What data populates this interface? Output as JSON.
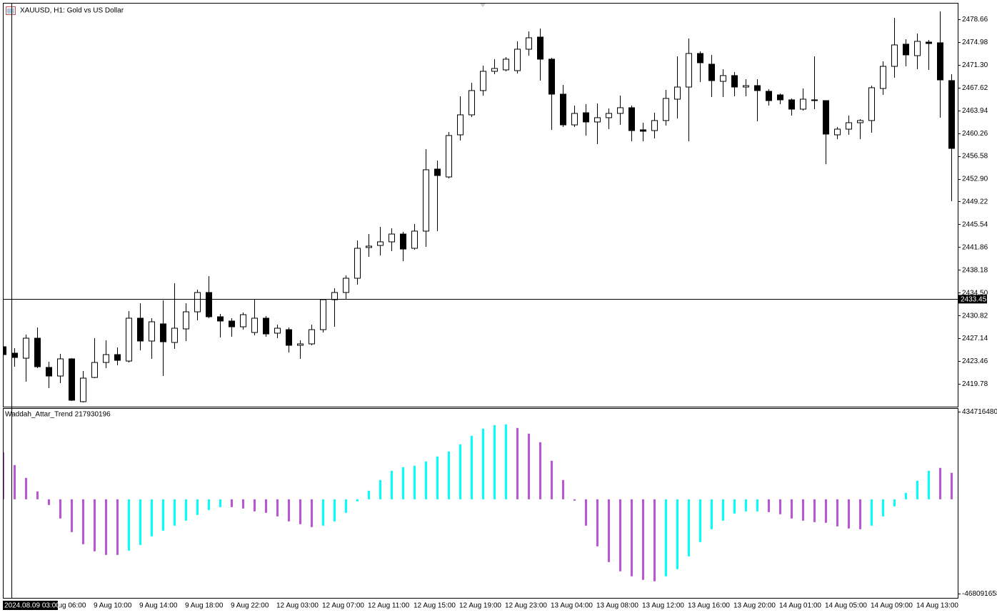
{
  "chart_data": [
    {
      "type": "candlestick",
      "title": "XAUUSD, H1:  Gold vs US Dollar",
      "categories": [
        null,
        null,
        null,
        null,
        "9 Aug 06:00",
        null,
        null,
        null,
        "9 Aug 10:00",
        null,
        null,
        null,
        "9 Aug 14:00",
        null,
        null,
        null,
        "9 Aug 18:00",
        null,
        null,
        null,
        "9 Aug 22:00",
        null,
        null,
        null,
        "12 Aug 03:00",
        null,
        null,
        null,
        "12 Aug 07:00",
        null,
        null,
        null,
        "12 Aug 11:00",
        null,
        null,
        null,
        "12 Aug 15:00",
        null,
        null,
        null,
        "12 Aug 19:00",
        null,
        null,
        null,
        "12 Aug 23:00",
        null,
        null,
        null,
        "13 Aug 04:00",
        null,
        null,
        null,
        "13 Aug 08:00",
        null,
        null,
        null,
        "13 Aug 12:00",
        null,
        null,
        null,
        "13 Aug 16:00",
        null,
        null,
        null,
        "13 Aug 20:00",
        null,
        null,
        null,
        "14 Aug 01:00",
        null,
        null,
        null,
        "14 Aug 05:00",
        null,
        null,
        null,
        "14 Aug 09:00",
        null,
        null,
        null,
        "14 Aug 13:00",
        null,
        null,
        null
      ],
      "open": [
        2425.77,
        2424.73,
        2423.92,
        2427.15,
        2422.43,
        2421.04,
        2423.81,
        2416.9,
        2420.81,
        2423.23,
        2424.5,
        2423.46,
        2430.38,
        2426.69,
        2429.46,
        2426.46,
        2428.65,
        2431.41,
        2434.53,
        2430.61,
        2429.92,
        2428.99,
        2428.07,
        2430.38,
        2427.96,
        2428.53,
        2426.0,
        2426.23,
        2428.53,
        2433.37,
        2434.53,
        2436.83,
        2441.79,
        2442.13,
        2442.71,
        2443.97,
        2441.67,
        2444.44,
        2454.46,
        2453.19,
        2459.99,
        2463.22,
        2467.14,
        2470.25,
        2470.48,
        2470.36,
        2473.82,
        2475.78,
        2472.21,
        2466.56,
        2461.6,
        2463.56,
        2462.07,
        2462.76,
        2463.45,
        2464.37,
        2460.8,
        2460.68,
        2462.3,
        2465.75,
        2467.71,
        2473.13,
        2471.4,
        2468.63,
        2469.56,
        2467.71,
        2467.94,
        2467.02,
        2466.44,
        2465.64,
        2464.14,
        2465.64,
        2465.52,
        2459.99,
        2460.91,
        2461.95,
        2462.3,
        2467.48,
        2471.05,
        2474.63,
        2472.78,
        2474.97,
        2474.86,
        2468.75
      ],
      "high": [
        2426.0,
        2425.54,
        2427.73,
        2428.88,
        2423.35,
        2424.62,
        2423.92,
        2421.85,
        2427.15,
        2426.81,
        2425.65,
        2431.53,
        2432.8,
        2430.38,
        2433.26,
        2436.02,
        2432.8,
        2434.99,
        2437.18,
        2431.07,
        2430.38,
        2431.3,
        2433.37,
        2430.72,
        2429.34,
        2428.88,
        2426.81,
        2429.34,
        2433.49,
        2435.22,
        2437.29,
        2442.94,
        2443.97,
        2445.13,
        2444.9,
        2444.32,
        2445.59,
        2457.69,
        2455.84,
        2460.45,
        2466.21,
        2468.4,
        2471.17,
        2472.21,
        2472.55,
        2475.09,
        2476.7,
        2477.16,
        2472.44,
        2468.06,
        2464.72,
        2464.95,
        2465.06,
        2464.25,
        2466.33,
        2464.72,
        2461.95,
        2463.56,
        2467.25,
        2472.67,
        2475.55,
        2473.47,
        2472.9,
        2470.59,
        2470.13,
        2468.98,
        2468.98,
        2467.37,
        2466.67,
        2465.87,
        2467.48,
        2472.67,
        2465.52,
        2461.26,
        2463.1,
        2462.53,
        2467.94,
        2471.86,
        2478.89,
        2475.43,
        2476.35,
        2475.32,
        2479.93,
        2469.79
      ],
      "low": [
        2424.39,
        2422.54,
        2420.12,
        2422.31,
        2419.09,
        2419.89,
        2417.01,
        2416.78,
        2420.7,
        2422.31,
        2422.77,
        2423.23,
        2425.19,
        2423.81,
        2421.04,
        2425.42,
        2426.69,
        2430.03,
        2430.38,
        2427.27,
        2427.38,
        2428.53,
        2427.61,
        2427.38,
        2427.15,
        2424.85,
        2423.81,
        2426.0,
        2428.07,
        2428.99,
        2433.49,
        2435.79,
        2440.29,
        2440.52,
        2441.21,
        2439.6,
        2441.44,
        2441.9,
        2444.44,
        2452.96,
        2459.07,
        2462.87,
        2466.33,
        2469.79,
        2470.25,
        2469.9,
        2472.78,
        2468.75,
        2460.8,
        2461.26,
        2461.26,
        2459.88,
        2458.49,
        2460.91,
        2461.6,
        2458.95,
        2458.95,
        2459.42,
        2461.49,
        2462.64,
        2458.95,
        2468.52,
        2466.1,
        2466.1,
        2466.21,
        2466.21,
        2462.18,
        2464.72,
        2464.95,
        2463.1,
        2463.91,
        2464.14,
        2455.27,
        2459.3,
        2459.99,
        2459.3,
        2460.34,
        2466.44,
        2469.21,
        2471.05,
        2470.59,
        2470.48,
        2462.76,
        2449.28
      ],
      "close": [
        2424.5,
        2424.04,
        2427.15,
        2422.54,
        2421.04,
        2423.81,
        2417.13,
        2420.7,
        2423.23,
        2424.5,
        2423.58,
        2430.38,
        2426.69,
        2429.8,
        2426.57,
        2428.76,
        2431.41,
        2434.53,
        2430.61,
        2429.92,
        2428.99,
        2430.95,
        2430.38,
        2427.84,
        2428.76,
        2426.0,
        2426.23,
        2428.53,
        2433.37,
        2434.53,
        2436.83,
        2441.67,
        2442.02,
        2442.71,
        2443.97,
        2441.55,
        2444.44,
        2454.35,
        2453.42,
        2459.88,
        2463.22,
        2467.14,
        2470.25,
        2470.71,
        2472.21,
        2473.82,
        2475.66,
        2472.21,
        2466.56,
        2461.6,
        2463.45,
        2462.07,
        2462.76,
        2463.45,
        2464.37,
        2460.68,
        2460.57,
        2462.3,
        2465.87,
        2467.71,
        2473.13,
        2471.63,
        2468.75,
        2469.56,
        2467.71,
        2467.94,
        2467.14,
        2465.52,
        2465.64,
        2464.14,
        2465.75,
        2465.52,
        2460.11,
        2460.91,
        2461.95,
        2462.3,
        2467.6,
        2471.05,
        2474.51,
        2472.9,
        2475.09,
        2474.74,
        2468.86,
        2457.8
      ],
      "up_color": "#ffffff",
      "down_color": "#000000",
      "ylim": [
        2416.09,
        2481.19
      ],
      "yticks": [
        2478.66,
        2474.98,
        {
          "value": 2471.3,
          "label": "2471.30"
        },
        2467.62,
        2463.94,
        2460.26,
        2456.58,
        {
          "value": 2452.9,
          "label": "2452.90"
        },
        2449.22,
        2445.54,
        2441.86,
        2438.18,
        {
          "value": 2434.5,
          "label": "2434.50"
        },
        2430.82,
        2427.14,
        2423.46,
        2419.78
      ],
      "crosshair": {
        "time": "2024.08.09 03:00",
        "price": 2433.45
      }
    },
    {
      "type": "bar",
      "title": "Waddah_Attar_Trend 217930196",
      "values": [
        233640000,
        169920000,
        106200000,
        38940000,
        -28320000,
        -95580000,
        -162840000,
        -223020000,
        -258420000,
        -276120000,
        -276120000,
        -254880000,
        -226560000,
        -184080000,
        -155760000,
        -130980000,
        -106200000,
        -77880000,
        -53100000,
        -38940000,
        -38940000,
        -46020000,
        -60180000,
        -67260000,
        -84960000,
        -109740000,
        -123900000,
        -138060000,
        -130980000,
        -109740000,
        -67260000,
        -10620000,
        42480000,
        95580000,
        141600000,
        159300000,
        166380000,
        187620000,
        212400000,
        237180000,
        272580000,
        315060000,
        350460000,
        368160000,
        371700000,
        354000000,
        325680000,
        283200000,
        191160000,
        95580000,
        -7080000,
        -130980000,
        -233640000,
        -311520000,
        -357540000,
        -382320000,
        -400020000,
        -407100000,
        -382320000,
        -346920000,
        -283200000,
        -212400000,
        -148680000,
        -106200000,
        -70800000,
        -60180000,
        -60180000,
        -63720000,
        -74340000,
        -95580000,
        -106200000,
        -113280000,
        -116820000,
        -134520000,
        -145140000,
        -148680000,
        -130980000,
        -84960000,
        -35400000,
        31860000,
        92040000,
        141600000,
        155760000,
        130980000
      ],
      "colors": [
        "#ba55d3",
        "#ba55d3",
        "#ba55d3",
        "#ba55d3",
        "#ba55d3",
        "#ba55d3",
        "#ba55d3",
        "#ba55d3",
        "#ba55d3",
        "#ba55d3",
        "#ba55d3",
        "#00ffff",
        "#00ffff",
        "#00ffff",
        "#00ffff",
        "#00ffff",
        "#00ffff",
        "#00ffff",
        "#00ffff",
        "#00ffff",
        "#ba55d3",
        "#ba55d3",
        "#ba55d3",
        "#ba55d3",
        "#ba55d3",
        "#ba55d3",
        "#ba55d3",
        "#ba55d3",
        "#00ffff",
        "#00ffff",
        "#00ffff",
        "#00ffff",
        "#00ffff",
        "#00ffff",
        "#00ffff",
        "#00ffff",
        "#00ffff",
        "#00ffff",
        "#00ffff",
        "#00ffff",
        "#00ffff",
        "#00ffff",
        "#00ffff",
        "#00ffff",
        "#00ffff",
        "#ba55d3",
        "#ba55d3",
        "#ba55d3",
        "#ba55d3",
        "#ba55d3",
        "#ba55d3",
        "#ba55d3",
        "#ba55d3",
        "#ba55d3",
        "#ba55d3",
        "#ba55d3",
        "#ba55d3",
        "#ba55d3",
        "#00ffff",
        "#00ffff",
        "#00ffff",
        "#00ffff",
        "#00ffff",
        "#00ffff",
        "#00ffff",
        "#00ffff",
        "#00ffff",
        "#ba55d3",
        "#ba55d3",
        "#ba55d3",
        "#ba55d3",
        "#ba55d3",
        "#ba55d3",
        "#ba55d3",
        "#ba55d3",
        "#ba55d3",
        "#00ffff",
        "#00ffff",
        "#00ffff",
        "#00ffff",
        "#00ffff",
        "#00ffff",
        "#ba55d3",
        "#ba55d3"
      ],
      "ylim": [
        -468091658,
        434716480
      ],
      "yticks": [
        434716480,
        -468091658
      ]
    }
  ]
}
